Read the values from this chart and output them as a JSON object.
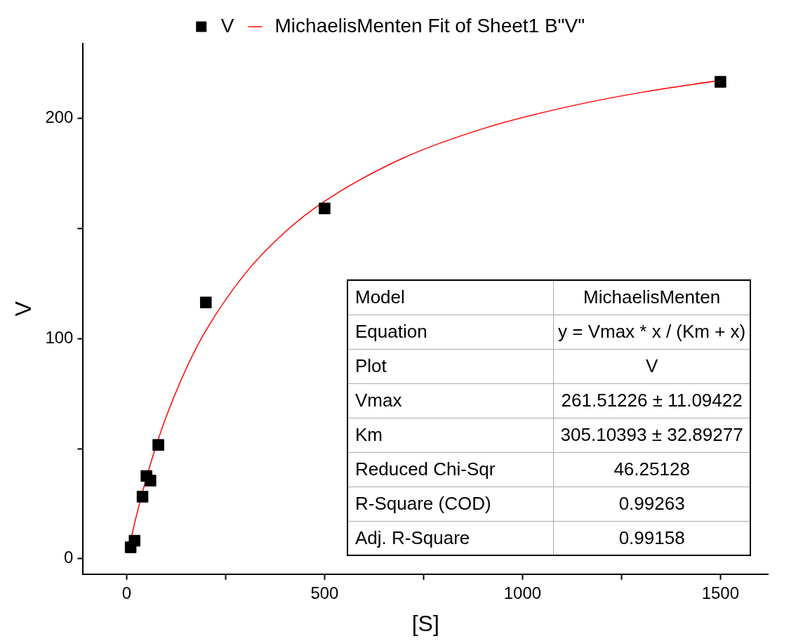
{
  "chart_data": {
    "type": "scatter",
    "xlabel": "[S]",
    "ylabel": "V",
    "xlim": [
      -110,
      1620
    ],
    "xticks": [
      0,
      {
        "value": 250,
        "label": null
      },
      500,
      {
        "value": 750,
        "label": null
      },
      1000,
      {
        "value": 1250,
        "label": null
      },
      1500
    ],
    "ylim": [
      -7,
      234
    ],
    "yticks": [
      0,
      {
        "value": 50,
        "label": null
      },
      100,
      {
        "value": 150,
        "label": null
      },
      200
    ],
    "grid": false,
    "legend": "top",
    "marker": "square",
    "series": [
      {
        "name": "V",
        "type": "scatter",
        "color": "#000000",
        "x": [
          10,
          20,
          40,
          50,
          60,
          80,
          200,
          500,
          1500
        ],
        "values": [
          5.2,
          8.2,
          28.2,
          37.6,
          35.5,
          51.7,
          116.4,
          159.1,
          216.6
        ]
      },
      {
        "name": "MichaelisMenten Fit of Sheet1 B\"V\"",
        "type": "line",
        "marker": "none",
        "line_style": "solid",
        "color": "#ff0000",
        "x": [
          10,
          20,
          40,
          60,
          80,
          100,
          150,
          200,
          300,
          400,
          500,
          700,
          900,
          1100,
          1300,
          1500
        ],
        "values": [
          8.3,
          16.1,
          30.3,
          43,
          54.3,
          64.6,
          86.2,
          103.6,
          129.7,
          148.4,
          162.4,
          182.1,
          195.3,
          204.7,
          211.8,
          217.3
        ]
      }
    ],
    "annotations": [
      "Model",
      "MichaelisMenten",
      "Equation",
      "y = Vmax * x / (Km + x)",
      "Plot",
      "V",
      "Vmax",
      "261.51226 ± 11.09422",
      "Km",
      "305.10393 ± 32.89277",
      "Reduced Chi-Sqr",
      "46.25128",
      "R-Square (COD)",
      "0.99263",
      "Adj. R-Square",
      "0.99158"
    ]
  }
}
